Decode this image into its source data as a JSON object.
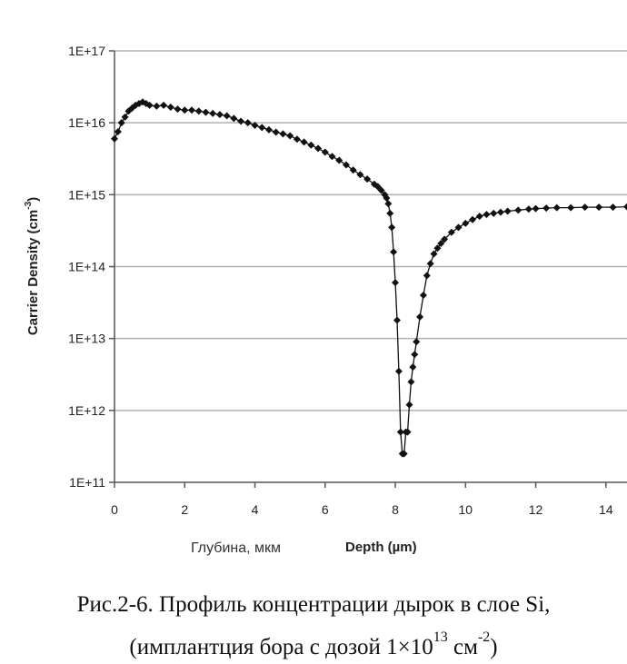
{
  "chart_data": {
    "type": "scatter",
    "xlabel": "Depth (µm)",
    "xlabel_prefix": "Глубина, мкм",
    "ylabel": "Carrier Density (cm",
    "ylabel_exp": "-3",
    "ylabel_suffix": ")",
    "x_ticks": [
      "0",
      "2",
      "4",
      "6",
      "8",
      "10",
      "12",
      "14"
    ],
    "y_ticks": [
      "1E+11",
      "1E+12",
      "1E+13",
      "1E+14",
      "1E+15",
      "1E+16",
      "1E+17"
    ],
    "xlim": [
      0,
      14.6
    ],
    "ylim_log10": [
      11,
      17
    ],
    "grid": "horizontal",
    "marker": "diamond",
    "series": [
      {
        "x": [
          0.0,
          0.1,
          0.2,
          0.3,
          0.4,
          0.5,
          0.6,
          0.7,
          0.8,
          0.9,
          1.0,
          1.2,
          1.4,
          1.6,
          1.8,
          2.0,
          2.2,
          2.4,
          2.6,
          2.8,
          3.0,
          3.2,
          3.4,
          3.6,
          3.8,
          4.0,
          4.2,
          4.4,
          4.6,
          4.8,
          5.0,
          5.2,
          5.4,
          5.6,
          5.8,
          6.0,
          6.2,
          6.4,
          6.6,
          6.8,
          7.0,
          7.2,
          7.4,
          7.5,
          7.6,
          7.7,
          7.75,
          7.8,
          7.85,
          7.9,
          7.95,
          8.0,
          8.05,
          8.1,
          8.15,
          8.2,
          8.25,
          8.3,
          8.35,
          8.4,
          8.45,
          8.5,
          8.55,
          8.6,
          8.7,
          8.8,
          8.9,
          9.0,
          9.1,
          9.2,
          9.3,
          9.4,
          9.6,
          9.8,
          10.0,
          10.2,
          10.4,
          10.6,
          10.8,
          11.0,
          11.2,
          11.5,
          11.8,
          12.0,
          12.3,
          12.6,
          13.0,
          13.4,
          13.8,
          14.2,
          14.6
        ],
        "y": [
          6000000000000000.0,
          7500000000000000.0,
          1e+16,
          1.2e+16,
          1.45e+16,
          1.6e+16,
          1.75e+16,
          1.85e+16,
          1.95e+16,
          1.85e+16,
          1.75e+16,
          1.7e+16,
          1.75e+16,
          1.65e+16,
          1.55e+16,
          1.5e+16,
          1.5e+16,
          1.45e+16,
          1.4e+16,
          1.35e+16,
          1.3e+16,
          1.25e+16,
          1.15e+16,
          1.05e+16,
          1e+16,
          9200000000000000.0,
          8600000000000000.0,
          8000000000000000.0,
          7400000000000000.0,
          7000000000000000.0,
          6600000000000000.0,
          5900000000000000.0,
          5400000000000000.0,
          4900000000000000.0,
          4400000000000000.0,
          3900000000000000.0,
          3400000000000000.0,
          3000000000000000.0,
          2600000000000000.0,
          2200000000000000.0,
          1900000000000000.0,
          1650000000000000.0,
          1400000000000000.0,
          1300000000000000.0,
          1150000000000000.0,
          1000000000000000.0,
          900000000000000.0,
          750000000000000.0,
          550000000000000.0,
          350000000000000.0,
          160000000000000.0,
          60000000000000.0,
          18000000000000.0,
          3500000000000.0,
          500000000000.0,
          250000000000.0,
          250000000000.0,
          500000000000.0,
          500000000000.0,
          1200000000000.0,
          2500000000000.0,
          4000000000000.0,
          6000000000000.0,
          9000000000000.0,
          20000000000000.0,
          40000000000000.0,
          75000000000000.0,
          110000000000000.0,
          150000000000000.0,
          180000000000000.0,
          210000000000000.0,
          240000000000000.0,
          300000000000000.0,
          350000000000000.0,
          400000000000000.0,
          450000000000000.0,
          500000000000000.0,
          530000000000000.0,
          550000000000000.0,
          570000000000000.0,
          590000000000000.0,
          610000000000000.0,
          630000000000000.0,
          640000000000000.0,
          650000000000000.0,
          660000000000000.0,
          660000000000000.0,
          670000000000000.0,
          670000000000000.0,
          670000000000000.0,
          680000000000000.0
        ]
      }
    ]
  },
  "caption": {
    "line1": "Рис.2-6. Профиль концентрации дырок в слое Si,",
    "line2_pre": "(имплантция бора с дозой 1×10",
    "line2_exp1": "13",
    "line2_mid": " см",
    "line2_exp2": "-2",
    "line2_post": ")"
  }
}
